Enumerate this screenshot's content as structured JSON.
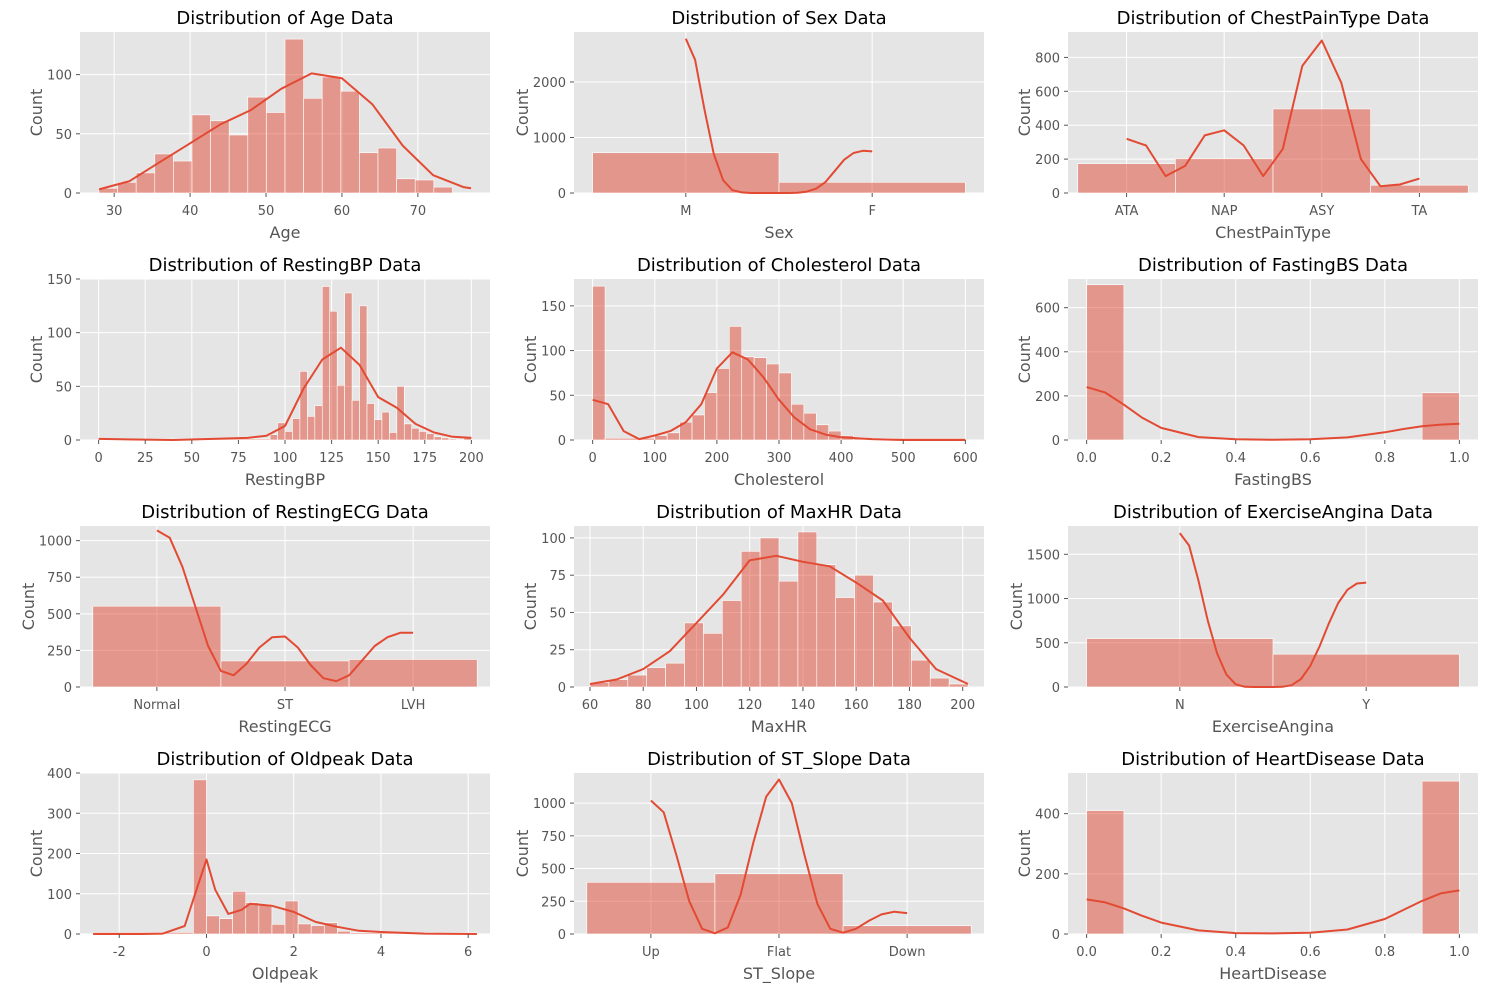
{
  "chart_data": [
    {
      "type": "histogram",
      "title": "Distribution of Age Data",
      "xlabel": "Age",
      "ylabel": "Count",
      "xlim": [
        25.5,
        79.5
      ],
      "ylim": [
        0,
        136
      ],
      "xticks": [
        30,
        40,
        50,
        60,
        70
      ],
      "yticks": [
        0,
        50,
        100
      ],
      "bin_edges": [
        28,
        30.45,
        32.9,
        35.35,
        37.8,
        40.25,
        42.7,
        45.15,
        47.6,
        50.05,
        52.5,
        54.95,
        57.4,
        59.85,
        62.3,
        64.75,
        67.2,
        69.65,
        72.1,
        74.55,
        77
      ],
      "counts": [
        4,
        9,
        17,
        33,
        27,
        66,
        61,
        49,
        81,
        68,
        130,
        80,
        98,
        86,
        34,
        38,
        12,
        11,
        5,
        0
      ],
      "kde_x": [
        28,
        32,
        36,
        40,
        44,
        48,
        52,
        56,
        60,
        64,
        68,
        72,
        76,
        77
      ],
      "kde_y": [
        3,
        10,
        26,
        42,
        58,
        70,
        88,
        101,
        97,
        75,
        40,
        15,
        5,
        4
      ]
    },
    {
      "type": "histogram",
      "title": "Distribution of Sex Data",
      "xlabel": "Sex",
      "ylabel": "Count",
      "xlim": [
        -0.6,
        1.6
      ],
      "ylim": [
        0,
        2900
      ],
      "xticks": [
        0,
        1
      ],
      "xticklabels": [
        "M",
        "F"
      ],
      "yticks": [
        0,
        1000,
        2000
      ],
      "bin_edges": [
        -0.5,
        0.5,
        1.5
      ],
      "counts": [
        725,
        193
      ],
      "kde_x": [
        0,
        0.05,
        0.1,
        0.15,
        0.2,
        0.25,
        0.3,
        0.35,
        0.4,
        0.45,
        0.5,
        0.55,
        0.6,
        0.65,
        0.7,
        0.75,
        0.8,
        0.85,
        0.9,
        0.95,
        1
      ],
      "kde_y": [
        2780,
        2400,
        1500,
        700,
        230,
        50,
        10,
        0,
        0,
        0,
        0,
        0,
        5,
        25,
        80,
        200,
        400,
        600,
        720,
        760,
        750
      ]
    },
    {
      "type": "histogram",
      "title": "Distribution of ChestPainType Data",
      "xlabel": "ChestPainType",
      "ylabel": "Count",
      "xlim": [
        -0.6,
        3.6
      ],
      "ylim": [
        0,
        950
      ],
      "xticks": [
        0,
        1,
        2,
        3
      ],
      "xticklabels": [
        "ATA",
        "NAP",
        "ASY",
        "TA"
      ],
      "yticks": [
        0,
        200,
        400,
        600,
        800
      ],
      "bin_edges": [
        -0.5,
        0.5,
        1.5,
        2.5,
        3.5
      ],
      "counts": [
        173,
        203,
        496,
        46
      ],
      "kde_x": [
        0,
        0.2,
        0.4,
        0.6,
        0.8,
        1,
        1.2,
        1.4,
        1.6,
        1.8,
        2,
        2.2,
        2.4,
        2.6,
        2.8,
        3
      ],
      "kde_y": [
        320,
        280,
        100,
        160,
        340,
        370,
        280,
        100,
        260,
        750,
        900,
        650,
        200,
        40,
        50,
        85
      ]
    },
    {
      "type": "histogram",
      "title": "Distribution of RestingBP Data",
      "xlabel": "RestingBP",
      "ylabel": "Count",
      "xlim": [
        -10,
        210
      ],
      "ylim": [
        0,
        150
      ],
      "xticks": [
        0,
        25,
        50,
        75,
        100,
        125,
        150,
        175,
        200
      ],
      "yticks": [
        0,
        50,
        100,
        150
      ],
      "bin_edges": [
        0,
        92,
        96,
        100,
        104,
        108,
        112,
        116,
        120,
        124,
        128,
        132,
        136,
        140,
        144,
        148,
        152,
        156,
        160,
        164,
        168,
        172,
        176,
        180,
        184,
        188,
        192,
        196,
        200
      ],
      "counts": [
        1,
        5,
        16,
        8,
        20,
        64,
        22,
        32,
        143,
        120,
        51,
        137,
        37,
        125,
        34,
        19,
        26,
        7,
        50,
        15,
        11,
        8,
        6,
        3,
        2,
        1,
        0,
        2
      ],
      "kde_x": [
        0,
        40,
        80,
        90,
        100,
        110,
        120,
        130,
        140,
        150,
        160,
        170,
        180,
        190,
        200
      ],
      "kde_y": [
        1,
        0,
        2,
        4,
        13,
        48,
        75,
        86,
        70,
        40,
        30,
        15,
        7,
        3,
        2
      ]
    },
    {
      "type": "histogram",
      "title": "Distribution of Cholesterol Data",
      "xlabel": "Cholesterol",
      "ylabel": "Count",
      "xlim": [
        -30,
        630
      ],
      "ylim": [
        0,
        180
      ],
      "xticks": [
        0,
        100,
        200,
        300,
        400,
        500,
        600
      ],
      "yticks": [
        0,
        50,
        100,
        150
      ],
      "bin_edges": [
        0,
        20,
        100,
        120,
        140,
        160,
        180,
        200,
        220,
        240,
        260,
        280,
        300,
        320,
        340,
        360,
        380,
        400,
        420,
        440,
        600
      ],
      "counts": [
        172,
        2,
        5,
        8,
        20,
        28,
        53,
        80,
        127,
        93,
        92,
        85,
        75,
        40,
        30,
        17,
        10,
        5,
        3,
        2
      ],
      "kde_x": [
        0,
        25,
        50,
        75,
        100,
        125,
        150,
        175,
        200,
        225,
        250,
        275,
        300,
        325,
        350,
        375,
        400,
        450,
        500,
        550,
        600
      ],
      "kde_y": [
        45,
        40,
        10,
        1,
        5,
        10,
        20,
        40,
        80,
        98,
        90,
        70,
        45,
        25,
        12,
        6,
        3,
        1,
        0,
        0,
        0
      ]
    },
    {
      "type": "histogram",
      "title": "Distribution of FastingBS Data",
      "xlabel": "FastingBS",
      "ylabel": "Count",
      "xlim": [
        -0.05,
        1.05
      ],
      "ylim": [
        0,
        730
      ],
      "xticks": [
        0,
        0.2,
        0.4,
        0.6,
        0.8,
        1
      ],
      "xticklabels": [
        "0.0",
        "0.2",
        "0.4",
        "0.6",
        "0.8",
        "1.0"
      ],
      "yticks": [
        0,
        200,
        400,
        600
      ],
      "bin_edges": [
        0,
        0.1,
        0.9,
        1
      ],
      "counts": [
        704,
        0,
        214
      ],
      "kde_x": [
        0,
        0.05,
        0.1,
        0.15,
        0.2,
        0.3,
        0.4,
        0.5,
        0.6,
        0.7,
        0.8,
        0.85,
        0.9,
        0.95,
        1
      ],
      "kde_y": [
        240,
        215,
        160,
        100,
        55,
        13,
        3,
        1,
        3,
        12,
        35,
        50,
        62,
        70,
        74
      ]
    },
    {
      "type": "histogram",
      "title": "Distribution of RestingECG Data",
      "xlabel": "RestingECG",
      "ylabel": "Count",
      "xlim": [
        -0.6,
        2.6
      ],
      "ylim": [
        0,
        1100
      ],
      "xticks": [
        0,
        1,
        2
      ],
      "xticklabels": [
        "Normal",
        "ST",
        "LVH"
      ],
      "yticks": [
        0,
        250,
        500,
        750,
        1000
      ],
      "bin_edges": [
        -0.5,
        0.5,
        1.5,
        2.5
      ],
      "counts": [
        552,
        178,
        188
      ],
      "kde_x": [
        0,
        0.1,
        0.2,
        0.3,
        0.4,
        0.5,
        0.6,
        0.7,
        0.8,
        0.9,
        1,
        1.1,
        1.2,
        1.3,
        1.4,
        1.5,
        1.6,
        1.7,
        1.8,
        1.9,
        2
      ],
      "kde_y": [
        1070,
        1020,
        820,
        550,
        280,
        110,
        80,
        160,
        270,
        340,
        345,
        270,
        150,
        60,
        40,
        80,
        180,
        280,
        340,
        370,
        370
      ]
    },
    {
      "type": "histogram",
      "title": "Distribution of MaxHR Data",
      "xlabel": "MaxHR",
      "ylabel": "Count",
      "xlim": [
        54,
        208
      ],
      "ylim": [
        0,
        108
      ],
      "xticks": [
        60,
        80,
        100,
        120,
        140,
        160,
        180,
        200
      ],
      "yticks": [
        0,
        25,
        50,
        75,
        100
      ],
      "bin_edges": [
        60,
        67.1,
        74.2,
        81.3,
        88.4,
        95.5,
        102.6,
        109.7,
        116.8,
        123.9,
        131,
        138.1,
        145.2,
        152.3,
        159.4,
        166.5,
        173.6,
        180.7,
        187.8,
        194.9,
        202
      ],
      "counts": [
        3,
        5,
        8,
        13,
        16,
        43,
        36,
        58,
        91,
        100,
        71,
        104,
        82,
        60,
        75,
        57,
        41,
        18,
        6,
        2
      ],
      "kde_x": [
        60,
        70,
        80,
        90,
        100,
        110,
        120,
        130,
        140,
        150,
        160,
        170,
        180,
        190,
        202
      ],
      "kde_y": [
        2,
        5,
        12,
        24,
        43,
        62,
        85,
        88,
        84,
        81,
        70,
        58,
        33,
        12,
        2
      ]
    },
    {
      "type": "histogram",
      "title": "Distribution of ExerciseAngina Data",
      "xlabel": "ExerciseAngina",
      "ylabel": "Count",
      "xlim": [
        -0.6,
        1.6
      ],
      "ylim": [
        0,
        1820
      ],
      "xticks": [
        0,
        1
      ],
      "xticklabels": [
        "N",
        "Y"
      ],
      "yticks": [
        0,
        500,
        1000,
        1500
      ],
      "bin_edges": [
        -0.5,
        0.5,
        1.5
      ],
      "counts": [
        547,
        371
      ],
      "kde_x": [
        0,
        0.05,
        0.1,
        0.15,
        0.2,
        0.25,
        0.3,
        0.35,
        0.4,
        0.45,
        0.5,
        0.55,
        0.6,
        0.65,
        0.7,
        0.75,
        0.8,
        0.85,
        0.9,
        0.95,
        1
      ],
      "kde_y": [
        1740,
        1600,
        1200,
        750,
        380,
        140,
        30,
        2,
        0,
        0,
        0,
        2,
        20,
        90,
        240,
        460,
        720,
        950,
        1100,
        1170,
        1180
      ]
    },
    {
      "type": "histogram",
      "title": "Distribution of Oldpeak Data",
      "xlabel": "Oldpeak",
      "ylabel": "Count",
      "xlim": [
        -2.9,
        6.5
      ],
      "ylim": [
        0,
        400
      ],
      "xticks": [
        -2,
        0,
        2,
        4,
        6
      ],
      "yticks": [
        0,
        100,
        200,
        300,
        400
      ],
      "bin_edges": [
        -2.6,
        -0.3,
        0,
        0.3,
        0.6,
        0.9,
        1.2,
        1.5,
        1.8,
        2.1,
        2.4,
        2.7,
        3,
        3.3,
        6.2
      ],
      "counts": [
        4,
        383,
        45,
        38,
        106,
        78,
        74,
        24,
        82,
        25,
        21,
        28,
        7,
        3
      ],
      "kde_x": [
        -2.6,
        -1.5,
        -1,
        -0.5,
        -0.2,
        0,
        0.2,
        0.5,
        0.8,
        1,
        1.5,
        2,
        2.5,
        3,
        3.5,
        4,
        5,
        6.2
      ],
      "kde_y": [
        0,
        0,
        1,
        20,
        120,
        185,
        110,
        50,
        60,
        75,
        70,
        55,
        30,
        18,
        8,
        5,
        1,
        0
      ]
    },
    {
      "type": "histogram",
      "title": "Distribution of ST_Slope Data",
      "xlabel": "ST_Slope",
      "ylabel": "Count",
      "xlim": [
        -0.6,
        2.6
      ],
      "ylim": [
        0,
        1230
      ],
      "xticks": [
        0,
        1,
        2
      ],
      "xticklabels": [
        "Up",
        "Flat",
        "Down"
      ],
      "yticks": [
        0,
        250,
        500,
        750,
        1000
      ],
      "bin_edges": [
        -0.5,
        0.5,
        1.5,
        2.5
      ],
      "counts": [
        395,
        460,
        63
      ],
      "kde_x": [
        0,
        0.1,
        0.2,
        0.3,
        0.4,
        0.5,
        0.6,
        0.7,
        0.8,
        0.9,
        1,
        1.1,
        1.2,
        1.3,
        1.4,
        1.5,
        1.6,
        1.7,
        1.8,
        1.9,
        2
      ],
      "kde_y": [
        1020,
        930,
        600,
        250,
        40,
        5,
        50,
        300,
        700,
        1050,
        1180,
        1000,
        600,
        230,
        40,
        10,
        40,
        100,
        150,
        170,
        160
      ]
    },
    {
      "type": "histogram",
      "title": "Distribution of HeartDisease Data",
      "xlabel": "HeartDisease",
      "ylabel": "Count",
      "xlim": [
        -0.05,
        1.05
      ],
      "ylim": [
        0,
        535
      ],
      "xticks": [
        0,
        0.2,
        0.4,
        0.6,
        0.8,
        1
      ],
      "xticklabels": [
        "0.0",
        "0.2",
        "0.4",
        "0.6",
        "0.8",
        "1.0"
      ],
      "yticks": [
        0,
        200,
        400
      ],
      "bin_edges": [
        0,
        0.1,
        0.9,
        1
      ],
      "counts": [
        410,
        0,
        508
      ],
      "kde_x": [
        0,
        0.05,
        0.1,
        0.15,
        0.2,
        0.3,
        0.4,
        0.5,
        0.6,
        0.7,
        0.8,
        0.85,
        0.9,
        0.95,
        1
      ],
      "kde_y": [
        115,
        105,
        85,
        60,
        38,
        12,
        3,
        2,
        4,
        15,
        50,
        80,
        110,
        135,
        145
      ]
    }
  ]
}
